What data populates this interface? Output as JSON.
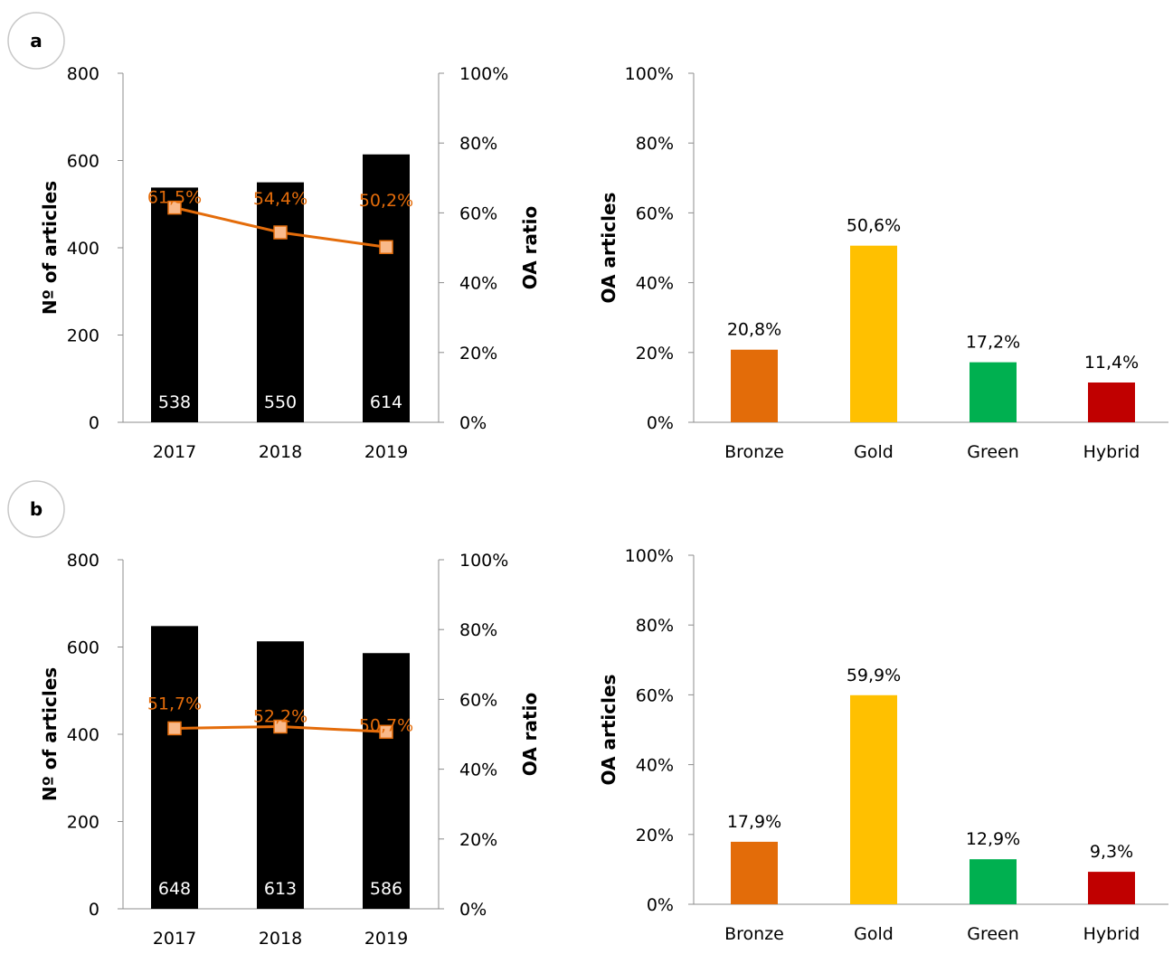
{
  "colors": {
    "bar_articles": "#000000",
    "ratio_line": "#E46C0A",
    "ratio_marker_fill": "#F9B98A",
    "bronze": "#E36C09",
    "gold": "#FFC000",
    "green": "#00B050",
    "hybrid": "#C00000"
  },
  "panels": [
    {
      "label": "a"
    },
    {
      "label": "b"
    }
  ],
  "chart_data": [
    {
      "panel": "a",
      "type": "bar",
      "categories": [
        "2017",
        "2018",
        "2019"
      ],
      "series": [
        {
          "name": "",
          "values": [
            538,
            550,
            614
          ],
          "labels": [
            "538",
            "550",
            "614"
          ],
          "axis": "left"
        },
        {
          "name": "",
          "type": "line",
          "values": [
            61.5,
            54.4,
            50.2
          ],
          "labels": [
            "61,5%",
            "54,4%",
            "50,2%"
          ],
          "axis": "right"
        }
      ],
      "ylabel": "Nº of articles",
      "y2label": "OA ratio",
      "ylim": [
        0,
        800
      ],
      "y2lim": [
        0,
        100
      ],
      "yticks": [
        "800",
        "600",
        "400",
        "200",
        "0"
      ],
      "y2ticks": [
        "100%",
        "80%",
        "60%",
        "40%",
        "20%",
        "0%"
      ],
      "grid": false
    },
    {
      "panel": "a",
      "type": "bar",
      "categories": [
        "Bronze",
        "Gold",
        "Green",
        "Hybrid"
      ],
      "values": [
        20.8,
        50.6,
        17.2,
        11.4
      ],
      "labels": [
        "20,8%",
        "50,6%",
        "17,2%",
        "11,4%"
      ],
      "ylabel": "OA articles",
      "ylim": [
        0,
        100
      ],
      "yticks": [
        "100%",
        "80%",
        "60%",
        "40%",
        "20%",
        "0%"
      ],
      "grid": false
    },
    {
      "panel": "b",
      "type": "bar",
      "categories": [
        "2017",
        "2018",
        "2019"
      ],
      "series": [
        {
          "name": "",
          "values": [
            648,
            613,
            586
          ],
          "labels": [
            "648",
            "613",
            "586"
          ],
          "axis": "left"
        },
        {
          "name": "",
          "type": "line",
          "values": [
            51.7,
            52.2,
            50.7
          ],
          "labels": [
            "51,7%",
            "52,2%",
            "50,7%"
          ],
          "axis": "right"
        }
      ],
      "ylabel": "Nº of articles",
      "y2label": "OA ratio",
      "ylim": [
        0,
        800
      ],
      "y2lim": [
        0,
        100
      ],
      "yticks": [
        "800",
        "600",
        "400",
        "200",
        "0"
      ],
      "y2ticks": [
        "100%",
        "80%",
        "60%",
        "40%",
        "20%",
        "0%"
      ],
      "grid": false
    },
    {
      "panel": "b",
      "type": "bar",
      "categories": [
        "Bronze",
        "Gold",
        "Green",
        "Hybrid"
      ],
      "values": [
        17.9,
        59.9,
        12.9,
        9.3
      ],
      "labels": [
        "17,9%",
        "59,9%",
        "12,9%",
        "9,3%"
      ],
      "ylabel": "OA articles",
      "ylim": [
        0,
        100
      ],
      "yticks": [
        "100%",
        "80%",
        "60%",
        "40%",
        "20%",
        "0%"
      ],
      "grid": false
    }
  ]
}
